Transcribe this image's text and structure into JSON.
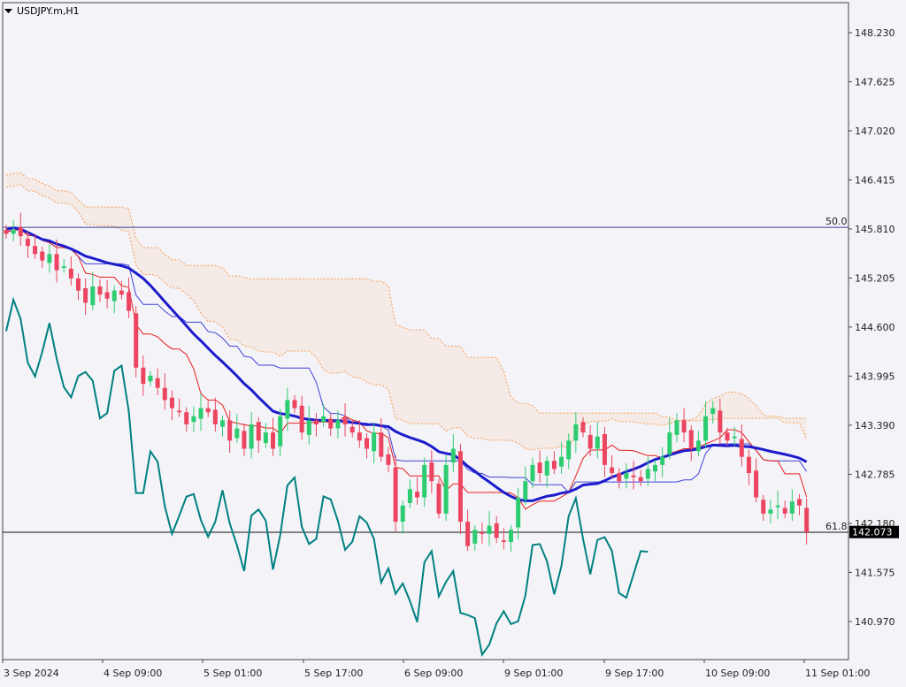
{
  "chart_data": {
    "type": "candlestick",
    "symbol_label": "USDJPY.m,H1",
    "y_ticks": [
      "148.230",
      "147.625",
      "147.020",
      "146.415",
      "145.810",
      "145.205",
      "144.600",
      "143.995",
      "143.390",
      "142.785",
      "142.180",
      "141.575",
      "140.970"
    ],
    "ylim": [
      140.5,
      148.6
    ],
    "x_ticks": [
      "3 Sep 2024",
      "4 Sep 09:00",
      "5 Sep 01:00",
      "5 Sep 17:00",
      "6 Sep 09:00",
      "9 Sep 01:00",
      "9 Sep 17:00",
      "10 Sep 09:00",
      "11 Sep 01:00"
    ],
    "levels": [
      {
        "label": "50.0",
        "value": 145.83
      },
      {
        "label": "61.8",
        "value": 142.07
      }
    ],
    "current_price": "142.073",
    "colors": {
      "bull": "#2ecc71",
      "bear": "#ec4560",
      "ma_blue": "#1c1ccc",
      "tenkan": "#e81c1c",
      "kijun": "#4040d8",
      "chikou": "#008080",
      "kumo": "#f59a50",
      "level": "#3b3b8f",
      "axis_text": "#222222",
      "price_box": "#000000"
    },
    "closes": [
      145.75,
      145.8,
      145.72,
      145.6,
      145.5,
      145.42,
      145.5,
      145.3,
      145.35,
      145.2,
      145.05,
      144.9,
      145.1,
      145.0,
      144.95,
      145.05,
      145.0,
      144.8,
      144.1,
      143.9,
      144.0,
      143.85,
      143.7,
      143.6,
      143.55,
      143.4,
      143.5,
      143.6,
      143.55,
      143.4,
      143.45,
      143.2,
      143.35,
      143.1,
      143.4,
      143.2,
      143.3,
      143.1,
      143.5,
      143.7,
      143.6,
      143.3,
      143.45,
      143.4,
      143.5,
      143.35,
      143.45,
      143.4,
      143.3,
      143.2,
      143.1,
      143.3,
      143.0,
      142.9,
      142.2,
      142.4,
      142.6,
      142.5,
      142.9,
      142.7,
      142.3,
      142.9,
      143.1,
      142.2,
      141.9,
      142.1,
      142.05,
      142.15,
      142.0,
      141.95,
      142.1,
      142.5,
      142.7,
      142.9,
      142.8,
      142.95,
      142.85,
      143.0,
      143.2,
      143.4,
      143.3,
      143.1,
      143.25,
      142.9,
      142.8,
      142.7,
      142.8,
      142.75,
      142.7,
      142.85,
      142.9,
      143.0,
      143.3,
      143.45,
      143.3,
      143.1,
      143.2,
      143.5,
      143.6,
      143.3,
      143.2,
      143.25,
      143.0,
      142.8,
      142.5,
      142.3,
      142.35,
      142.4,
      142.3,
      142.45,
      142.4,
      142.07
    ]
  }
}
